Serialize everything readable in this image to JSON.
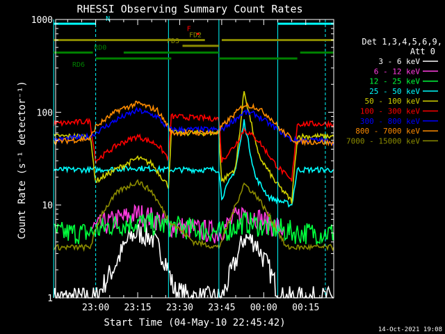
{
  "chart_data": {
    "type": "line",
    "title": "RHESSI Observing Summary Count Rates",
    "xlabel": "Start Time (04-May-10 22:45:42)",
    "ylabel": "Count Rate (s⁻¹ detector⁻¹)",
    "y_scale": "log",
    "ylim": [
      1,
      1000
    ],
    "xlim": [
      "22:45:42",
      "00:25:00"
    ],
    "grid": false,
    "legend_position": "right",
    "y_tick_labels": [
      "1",
      "10",
      "100",
      "1000"
    ],
    "x_tick_labels": [
      "23:00",
      "23:15",
      "23:30",
      "23:45",
      "00:00",
      "00:15"
    ],
    "legend_header": [
      "Det 1,3,4,5,6,9,",
      "Att 0"
    ],
    "footer_date": "14-Oct-2021 19:08",
    "series": [
      {
        "name": "3 - 6 keV",
        "color": "#ffffff",
        "x": [
          "22:45",
          "22:58",
          "23:00",
          "23:06",
          "23:12",
          "23:15",
          "23:20",
          "23:25",
          "23:28",
          "23:35",
          "23:40",
          "23:45",
          "23:50",
          "23:53",
          "23:57",
          "00:02",
          "00:06",
          "00:10",
          "00:12",
          "00:20",
          "00:25"
        ],
        "y": [
          1.0,
          1.0,
          1.0,
          2.0,
          4.5,
          5.0,
          4.5,
          2.5,
          1.2,
          1.0,
          1.0,
          1.0,
          2.5,
          4.5,
          4.0,
          2.0,
          1.0,
          1.0,
          1.0,
          1.0,
          1.0
        ]
      },
      {
        "name": "6 - 12 keV",
        "color": "#ff3ce0",
        "x": [
          "22:58",
          "23:02",
          "23:08",
          "23:15",
          "23:22",
          "23:26",
          "23:44",
          "23:48",
          "23:53",
          "23:57",
          "00:03",
          "00:07"
        ],
        "y": [
          5.5,
          6.0,
          7.0,
          8.0,
          7.0,
          6.0,
          5.0,
          6.5,
          8.5,
          7.5,
          6.0,
          5.5
        ]
      },
      {
        "name": "12 - 25 keV",
        "color": "#00ff3c",
        "x": [
          "22:45",
          "22:58",
          "23:05",
          "23:15",
          "23:25",
          "23:35",
          "23:45",
          "23:53",
          "00:05",
          "00:12",
          "00:20",
          "00:25"
        ],
        "y": [
          5.0,
          5.0,
          6.0,
          6.5,
          6.0,
          5.5,
          5.0,
          6.5,
          5.5,
          5.0,
          5.0,
          5.0
        ]
      },
      {
        "name": "25 - 50 keV",
        "color": "#00ffff",
        "x": [
          "22:45",
          "22:58",
          "23:00",
          "23:15",
          "23:26",
          "23:27",
          "23:44",
          "23:45",
          "23:50",
          "23:53",
          "23:57",
          "00:02",
          "00:06",
          "00:10",
          "00:12",
          "00:20",
          "00:25"
        ],
        "y": [
          24,
          24,
          24,
          25,
          24,
          24,
          24,
          12,
          25,
          80,
          20,
          12,
          11,
          10,
          24,
          24,
          24
        ]
      },
      {
        "name": "50 - 100 keV",
        "color": "#d2d200",
        "x": [
          "22:45",
          "22:58",
          "23:00",
          "23:08",
          "23:15",
          "23:20",
          "23:26",
          "23:27",
          "23:44",
          "23:45",
          "23:50",
          "23:53",
          "23:58",
          "00:04",
          "00:10",
          "00:12",
          "00:20",
          "00:25"
        ],
        "y": [
          55,
          55,
          18,
          25,
          32,
          28,
          16,
          60,
          60,
          18,
          25,
          170,
          35,
          18,
          11,
          55,
          55,
          55
        ]
      },
      {
        "name": "100 - 300 keV",
        "color": "#ff0000",
        "x": [
          "22:45",
          "22:58",
          "23:00",
          "23:08",
          "23:15",
          "23:22",
          "23:26",
          "23:27",
          "23:44",
          "23:45",
          "23:50",
          "23:53",
          "23:58",
          "00:04",
          "00:10",
          "00:12",
          "00:20",
          "00:25"
        ],
        "y": [
          75,
          80,
          30,
          45,
          55,
          45,
          32,
          90,
          85,
          30,
          45,
          65,
          50,
          28,
          18,
          75,
          75,
          75
        ]
      },
      {
        "name": "300 - 800 keV",
        "color": "#0000ff",
        "x": [
          "22:45",
          "22:58",
          "23:00",
          "23:08",
          "23:15",
          "23:22",
          "23:26",
          "23:27",
          "23:44",
          "23:45",
          "23:53",
          "23:57",
          "00:02",
          "00:06",
          "00:10",
          "00:12",
          "00:20",
          "00:25"
        ],
        "y": [
          50,
          55,
          60,
          85,
          105,
          90,
          65,
          65,
          65,
          65,
          100,
          95,
          75,
          62,
          50,
          50,
          50,
          48
        ]
      },
      {
        "name": "800 - 7000 keV",
        "color": "#ff8c00",
        "x": [
          "22:45",
          "22:58",
          "23:00",
          "23:08",
          "23:15",
          "23:22",
          "23:26",
          "23:27",
          "23:44",
          "23:45",
          "23:53",
          "23:57",
          "00:02",
          "00:06",
          "00:10",
          "00:12",
          "00:20",
          "00:25"
        ],
        "y": [
          48,
          52,
          70,
          105,
          125,
          105,
          70,
          60,
          60,
          70,
          120,
          115,
          90,
          65,
          52,
          48,
          48,
          46
        ]
      },
      {
        "name": "7000 - 15000 keV",
        "color": "#8c8c00",
        "x": [
          "22:45",
          "22:58",
          "23:02",
          "23:08",
          "23:15",
          "23:20",
          "23:26",
          "23:35",
          "23:44",
          "23:48",
          "23:53",
          "23:58",
          "00:04",
          "00:08",
          "00:15",
          "00:25"
        ],
        "y": [
          3.5,
          3.5,
          8.0,
          14,
          18,
          14,
          7.0,
          4.0,
          3.5,
          7.0,
          17,
          12,
          6.0,
          3.5,
          3.5,
          3.5
        ]
      }
    ],
    "annotations": {
      "vlines": [
        {
          "time": "22:45",
          "color": "#00ffff"
        },
        {
          "time": "23:00",
          "color": "#00ffff",
          "dashed": true
        },
        {
          "time": "00:05",
          "color": "#00ffff"
        },
        {
          "time": "00:22",
          "color": "#00ffff",
          "dashed": true
        },
        {
          "time": "23:26",
          "color": "#00ffff"
        },
        {
          "time": "23:44",
          "color": "#00ffff"
        }
      ],
      "bars": [
        {
          "label": "N",
          "color": "#00ffff",
          "level": 900,
          "segments": [
            [
              "22:45",
              "23:00"
            ],
            [
              "00:05",
              "00:25"
            ]
          ]
        },
        {
          "label": "F",
          "color": "#ff0000",
          "level": 700,
          "segments": [
            [
              "23:36",
              "23:37"
            ]
          ]
        },
        {
          "label": "FD2",
          "color": "#8c8c00",
          "level": 600,
          "segments": [
            [
              "22:45",
              "23:39"
            ],
            [
              "23:45",
              "00:25"
            ]
          ]
        },
        {
          "label": "FD3",
          "color": "#8c8c00",
          "level": 520,
          "segments": [
            [
              "23:31",
              "23:44"
            ]
          ]
        },
        {
          "label": "RD0",
          "color": "#008000",
          "level": 440,
          "segments": [
            [
              "22:45",
              "22:59"
            ],
            [
              "23:10",
              "23:44"
            ],
            [
              "00:13",
              "00:25"
            ]
          ]
        },
        {
          "label": "RD6",
          "color": "#008000",
          "level": 380,
          "segments": [
            [
              "23:00",
              "23:27"
            ],
            [
              "23:44",
              "00:12"
            ]
          ]
        }
      ]
    }
  }
}
